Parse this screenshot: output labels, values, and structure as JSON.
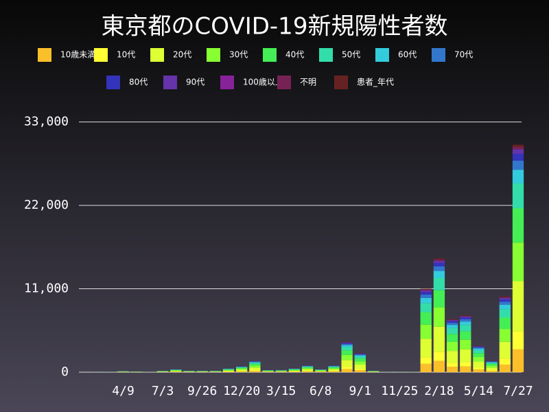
{
  "chart_data": {
    "type": "stacked-bar",
    "title": "東京都のCOVID-19新規陽性者数",
    "categories": [
      null,
      null,
      null,
      "4/9",
      null,
      null,
      "7/3",
      null,
      null,
      "9/26",
      null,
      null,
      "12/20",
      null,
      null,
      "3/15",
      null,
      null,
      "6/8",
      null,
      null,
      "9/1",
      null,
      null,
      "11/25",
      null,
      null,
      "2/18",
      null,
      null,
      "5/14",
      null,
      null,
      "7/27"
    ],
    "ylim": [
      0,
      35500
    ],
    "yticks": [
      0,
      {
        "value": 11000,
        "label": "11,000"
      },
      {
        "value": 22000,
        "label": "22,000"
      },
      {
        "value": 33000,
        "label": "33,000"
      }
    ],
    "grid": true,
    "series": [
      {
        "name": "10歳未満",
        "color": "#fbbf2a",
        "values": [
          0,
          1,
          3,
          15,
          10,
          3,
          20,
          40,
          20,
          20,
          20,
          50,
          80,
          150,
          30,
          30,
          50,
          90,
          40,
          90,
          400,
          250,
          20,
          3,
          2,
          4,
          1100,
          1500,
          700,
          750,
          350,
          150,
          1000,
          3000
        ]
      },
      {
        "name": "10代",
        "color": "#ffff33",
        "values": [
          0,
          1,
          2,
          12,
          8,
          2,
          16,
          32,
          16,
          16,
          16,
          40,
          64,
          120,
          24,
          24,
          40,
          72,
          32,
          72,
          320,
          200,
          16,
          2,
          2,
          3,
          880,
          1200,
          560,
          600,
          280,
          120,
          800,
          2400
        ]
      },
      {
        "name": "20代",
        "color": "#ddff33",
        "values": [
          0,
          2,
          7,
          33,
          22,
          7,
          44,
          88,
          44,
          44,
          44,
          110,
          176,
          330,
          66,
          66,
          110,
          198,
          88,
          198,
          880,
          550,
          44,
          7,
          4,
          9,
          2420,
          3300,
          1540,
          1650,
          770,
          330,
          2200,
          6600
        ]
      },
      {
        "name": "30代",
        "color": "#88ff33",
        "values": [
          0,
          2,
          5,
          26,
          17,
          5,
          34,
          68,
          34,
          34,
          34,
          85,
          136,
          255,
          51,
          51,
          85,
          153,
          68,
          153,
          680,
          425,
          34,
          5,
          3,
          7,
          1870,
          2550,
          1190,
          1275,
          595,
          255,
          1700,
          5100
        ]
      },
      {
        "name": "40代",
        "color": "#44ee55",
        "values": [
          0,
          2,
          5,
          22,
          15,
          5,
          30,
          60,
          30,
          30,
          30,
          75,
          120,
          225,
          45,
          45,
          75,
          135,
          60,
          135,
          600,
          375,
          30,
          5,
          3,
          6,
          1650,
          2250,
          1050,
          1125,
          525,
          225,
          1500,
          4500
        ]
      },
      {
        "name": "50代",
        "color": "#33ddaa",
        "values": [
          0,
          1,
          3,
          17,
          11,
          3,
          22,
          44,
          22,
          22,
          22,
          55,
          88,
          165,
          33,
          33,
          55,
          99,
          44,
          99,
          440,
          275,
          22,
          3,
          2,
          4,
          1210,
          1650,
          770,
          825,
          385,
          165,
          1100,
          3300
        ]
      },
      {
        "name": "60代",
        "color": "#33ccdd",
        "values": [
          0,
          1,
          2,
          9,
          6,
          2,
          12,
          24,
          12,
          12,
          12,
          30,
          48,
          90,
          18,
          18,
          30,
          54,
          24,
          54,
          240,
          150,
          12,
          2,
          1,
          2,
          660,
          900,
          420,
          450,
          210,
          90,
          600,
          1800
        ]
      },
      {
        "name": "70代",
        "color": "#3377cc",
        "values": [
          0,
          0,
          1,
          6,
          4,
          1,
          8,
          16,
          8,
          8,
          8,
          20,
          32,
          60,
          12,
          12,
          20,
          36,
          16,
          36,
          160,
          100,
          8,
          1,
          1,
          2,
          440,
          600,
          280,
          300,
          140,
          60,
          400,
          1200
        ]
      },
      {
        "name": "80代",
        "color": "#3333bb",
        "values": [
          0,
          0,
          1,
          4,
          3,
          1,
          6,
          12,
          6,
          6,
          6,
          15,
          24,
          45,
          9,
          9,
          15,
          27,
          12,
          27,
          120,
          75,
          6,
          1,
          1,
          1,
          330,
          450,
          210,
          225,
          105,
          45,
          300,
          900
        ]
      },
      {
        "name": "90代",
        "color": "#6633aa",
        "values": [
          0,
          0,
          1,
          3,
          2,
          1,
          4,
          8,
          4,
          4,
          4,
          10,
          16,
          30,
          6,
          6,
          10,
          18,
          8,
          18,
          80,
          50,
          4,
          1,
          1,
          1,
          220,
          300,
          140,
          150,
          70,
          30,
          200,
          600
        ]
      },
      {
        "name": "100歳以上",
        "color": "#882299",
        "values": [
          0,
          0,
          0,
          0,
          0,
          0,
          0,
          0,
          0,
          0,
          0,
          0,
          0,
          0,
          0,
          0,
          0,
          0,
          0,
          0,
          0,
          0,
          0,
          0,
          0,
          0,
          0,
          0,
          0,
          0,
          0,
          0,
          0,
          0
        ]
      },
      {
        "name": "不明",
        "color": "#772255",
        "values": [
          0,
          0,
          0,
          2,
          1,
          0,
          2,
          4,
          2,
          2,
          2,
          5,
          8,
          15,
          3,
          3,
          5,
          9,
          4,
          9,
          40,
          25,
          2,
          0,
          0,
          1,
          110,
          150,
          70,
          75,
          35,
          15,
          100,
          300
        ]
      },
      {
        "name": "患者_年代",
        "color": "#662222",
        "values": [
          0,
          0,
          0,
          1,
          1,
          0,
          2,
          4,
          2,
          2,
          2,
          5,
          8,
          15,
          3,
          3,
          5,
          9,
          4,
          9,
          40,
          25,
          2,
          0,
          0,
          0,
          110,
          150,
          70,
          75,
          35,
          15,
          100,
          300
        ]
      }
    ]
  }
}
